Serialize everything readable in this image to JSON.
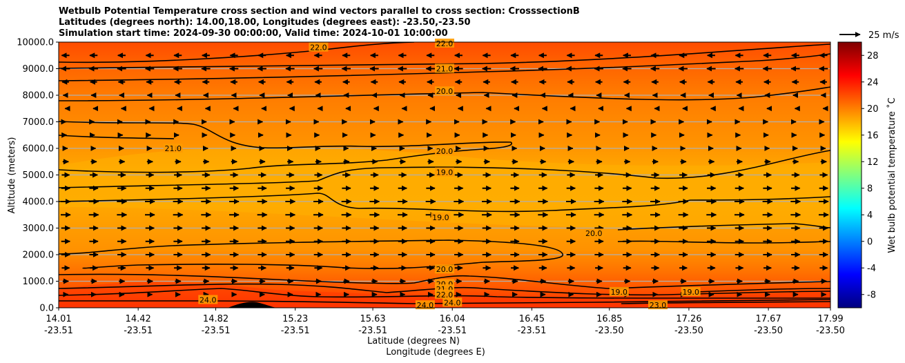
{
  "title_lines": [
    "Wetbulb Potential Temperature cross section and wind vectors parallel to cross section: CrosssectionB",
    "Latitudes (degrees north): 14.00,18.00, Longitudes (degrees east): -23.50,-23.50",
    "Simulation start time: 2024-09-30 00:00:00, Valid time: 2024-10-01 10:00:00"
  ],
  "chart_data": {
    "type": "heatmap",
    "xlabel_lines": [
      "Latitude (degrees N)",
      "Longitude (degrees E)"
    ],
    "ylabel": "Altitude (meters)",
    "ylim": [
      0,
      10000
    ],
    "y_ticks": [
      "0.0",
      "1000.0",
      "2000.0",
      "3000.0",
      "4000.0",
      "5000.0",
      "6000.0",
      "7000.0",
      "8000.0",
      "9000.0",
      "10000.0"
    ],
    "x_ticks": [
      {
        "lat": "14.01",
        "lon": "-23.51"
      },
      {
        "lat": "14.42",
        "lon": "-23.51"
      },
      {
        "lat": "14.82",
        "lon": "-23.51"
      },
      {
        "lat": "15.23",
        "lon": "-23.51"
      },
      {
        "lat": "15.63",
        "lon": "-23.51"
      },
      {
        "lat": "16.04",
        "lon": "-23.51"
      },
      {
        "lat": "16.45",
        "lon": "-23.51"
      },
      {
        "lat": "16.85",
        "lon": "-23.50"
      },
      {
        "lat": "17.26",
        "lon": "-23.50"
      },
      {
        "lat": "17.67",
        "lon": "-23.50"
      },
      {
        "lat": "17.99",
        "lon": "-23.50"
      }
    ],
    "grid": "horizontal",
    "colorbar": {
      "label": "Wet bulb potential temperature ˚C",
      "ticks": [
        "-8",
        "-4",
        "0",
        "4",
        "8",
        "12",
        "16",
        "20",
        "24",
        "28"
      ],
      "range": [
        -10,
        30
      ],
      "colormap": "jet"
    },
    "quiver_key": "25 m/s",
    "contour_labels": [
      {
        "text": "22.0",
        "lat": 15.35,
        "alt": 9800
      },
      {
        "text": "22.0",
        "lat": 16.0,
        "alt": 9950
      },
      {
        "text": "21.0",
        "lat": 16.0,
        "alt": 9000
      },
      {
        "text": "20.0",
        "lat": 16.0,
        "alt": 8150
      },
      {
        "text": "21.0",
        "lat": 14.6,
        "alt": 6000
      },
      {
        "text": "20.0",
        "lat": 16.0,
        "alt": 5900
      },
      {
        "text": "19.0",
        "lat": 16.0,
        "alt": 5100
      },
      {
        "text": "19.0",
        "lat": 15.98,
        "alt": 3400
      },
      {
        "text": "20.0",
        "lat": 16.77,
        "alt": 2800
      },
      {
        "text": "20.0",
        "lat": 16.0,
        "alt": 1450
      },
      {
        "text": "20.0",
        "lat": 16.0,
        "alt": 900
      },
      {
        "text": "21.0",
        "lat": 16.0,
        "alt": 700
      },
      {
        "text": "22.0",
        "lat": 16.0,
        "alt": 500
      },
      {
        "text": "24.0",
        "lat": 14.78,
        "alt": 300
      },
      {
        "text": "24.0",
        "lat": 15.9,
        "alt": 100
      },
      {
        "text": "24.0",
        "lat": 16.04,
        "alt": 200
      },
      {
        "text": "19.0",
        "lat": 16.9,
        "alt": 600
      },
      {
        "text": "23.0",
        "lat": 17.1,
        "alt": 100
      },
      {
        "text": "19.0",
        "lat": 17.27,
        "alt": 600
      }
    ],
    "wind_rows": [
      {
        "alt": 9500,
        "u": -8
      },
      {
        "alt": 9000,
        "u": -9
      },
      {
        "alt": 8500,
        "u": -7
      },
      {
        "alt": 8000,
        "u": -5
      },
      {
        "alt": 7500,
        "u": -1
      },
      {
        "alt": 7000,
        "u": 1
      },
      {
        "alt": 6500,
        "u": 2
      },
      {
        "alt": 6000,
        "u": 4
      },
      {
        "alt": 5500,
        "u": 6
      },
      {
        "alt": 5000,
        "u": 8
      },
      {
        "alt": 4500,
        "u": 9
      },
      {
        "alt": 4000,
        "u": 10
      },
      {
        "alt": 3500,
        "u": 10
      },
      {
        "alt": 3000,
        "u": 9
      },
      {
        "alt": 2500,
        "u": 9
      },
      {
        "alt": 2000,
        "u": 9
      },
      {
        "alt": 1500,
        "u": 8
      },
      {
        "alt": 1000,
        "u": 6
      },
      {
        "alt": 500,
        "u": 5
      }
    ]
  }
}
